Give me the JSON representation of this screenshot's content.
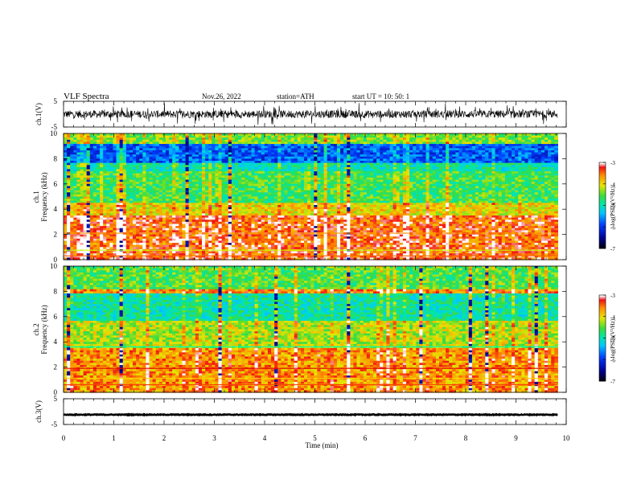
{
  "header": {
    "title": "VLF  Spectra",
    "date": "Nov.26, 2022",
    "station": "station=ATH",
    "start_ut": "start  UT  =    10: 50: 1"
  },
  "chart_data": [
    {
      "type": "line",
      "panel": "ch1-waveform",
      "ylabel": "ch.1(V)",
      "xlim": [
        0,
        10
      ],
      "ylim": [
        -5,
        5
      ],
      "yticks": [
        "5",
        "-5"
      ],
      "series": [
        {
          "x_end": 9.83,
          "baseline": 0,
          "amplitude": 1.5
        }
      ]
    },
    {
      "type": "heatmap",
      "panel": "ch1-spectrogram",
      "ylabel_top": "ch.1",
      "ylabel": "Frequency  (kHz)",
      "xlim": [
        0,
        10
      ],
      "ylim": [
        0,
        10
      ],
      "yticks": [
        "0",
        "2",
        "4",
        "6",
        "8",
        "10"
      ],
      "x_end": 9.83,
      "colorbar": {
        "label": "log(PSD)(V²/Hz)",
        "range": [
          -7,
          -3
        ],
        "ticks": [
          "-3",
          "-4",
          "-5",
          "-6",
          "-7"
        ]
      }
    },
    {
      "type": "heatmap",
      "panel": "ch2-spectrogram",
      "ylabel_top": "ch.2",
      "ylabel": "Frequency  (kHz)",
      "xlim": [
        0,
        10
      ],
      "ylim": [
        0,
        10
      ],
      "yticks": [
        "0",
        "2",
        "4",
        "6",
        "8",
        "10"
      ],
      "x_end": 9.83,
      "colorbar": {
        "label": "log(PSD)(V²/Hz)",
        "range": [
          -7,
          -3
        ],
        "ticks": [
          "-3",
          "-4",
          "-5",
          "-6",
          "-7"
        ]
      }
    },
    {
      "type": "line",
      "panel": "ch3-waveform",
      "ylabel": "ch.3(V)",
      "xlabel": "Time  (min)",
      "xlim": [
        0,
        10
      ],
      "ylim": [
        -5,
        5
      ],
      "yticks": [
        "5",
        "-5"
      ],
      "xticks": [
        "0",
        "1",
        "2",
        "3",
        "4",
        "5",
        "6",
        "7",
        "8",
        "9",
        "10"
      ],
      "series": [
        {
          "x_end": 9.83,
          "baseline": -1.2,
          "amplitude": 0.15
        }
      ]
    }
  ]
}
